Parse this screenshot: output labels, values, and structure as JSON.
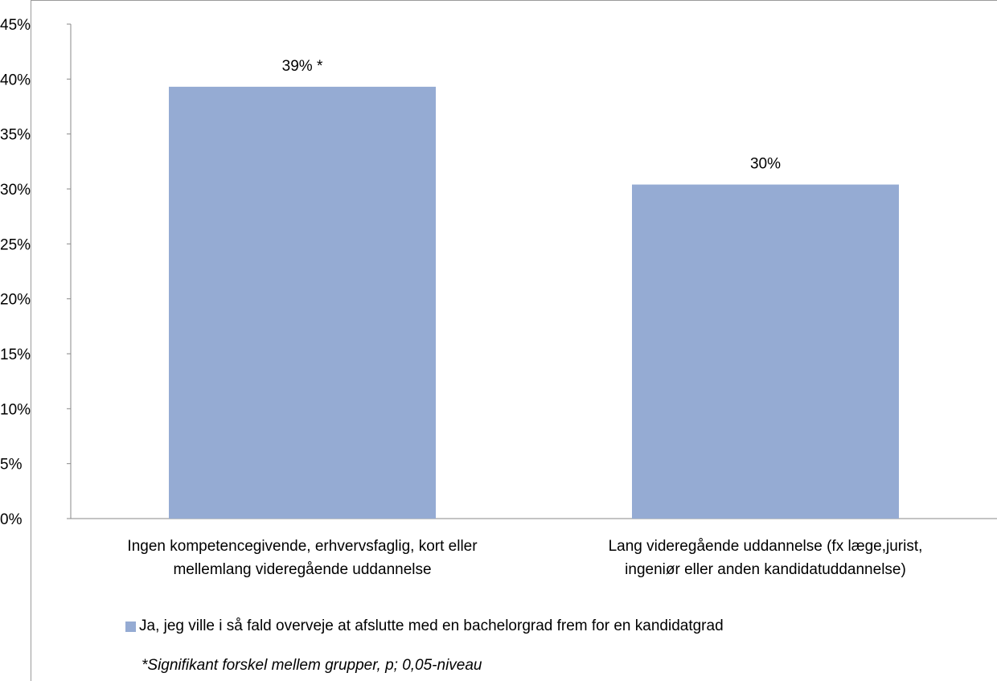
{
  "chart_data": {
    "type": "bar",
    "categories": [
      [
        "Ingen kompetencegivende, erhvervsfaglig, kort eller",
        "mellemlang videregående uddannelse"
      ],
      [
        "Lang videregående uddannelse (fx læge,jurist,",
        "ingeniør eller anden kandidatuddannelse)"
      ]
    ],
    "series": [
      {
        "name": "Ja, jeg ville i så fald overveje at afslutte med en bachelorgrad frem for en kandidatgrad",
        "values": [
          39.3,
          30.4
        ],
        "data_labels": [
          "39% *",
          "30%"
        ],
        "color": "#95abd3"
      }
    ],
    "ylim": [
      0,
      45
    ],
    "yticks": [
      "0%",
      "5%",
      "10%",
      "15%",
      "20%",
      "25%",
      "30%",
      "35%",
      "40%",
      "45%"
    ],
    "ytick_values": [
      0,
      5,
      10,
      15,
      20,
      25,
      30,
      35,
      40,
      45
    ],
    "grid": false,
    "legend_position": "bottom",
    "footnote": "*Signifikant forskel mellem grupper, p; 0,05-niveau"
  }
}
